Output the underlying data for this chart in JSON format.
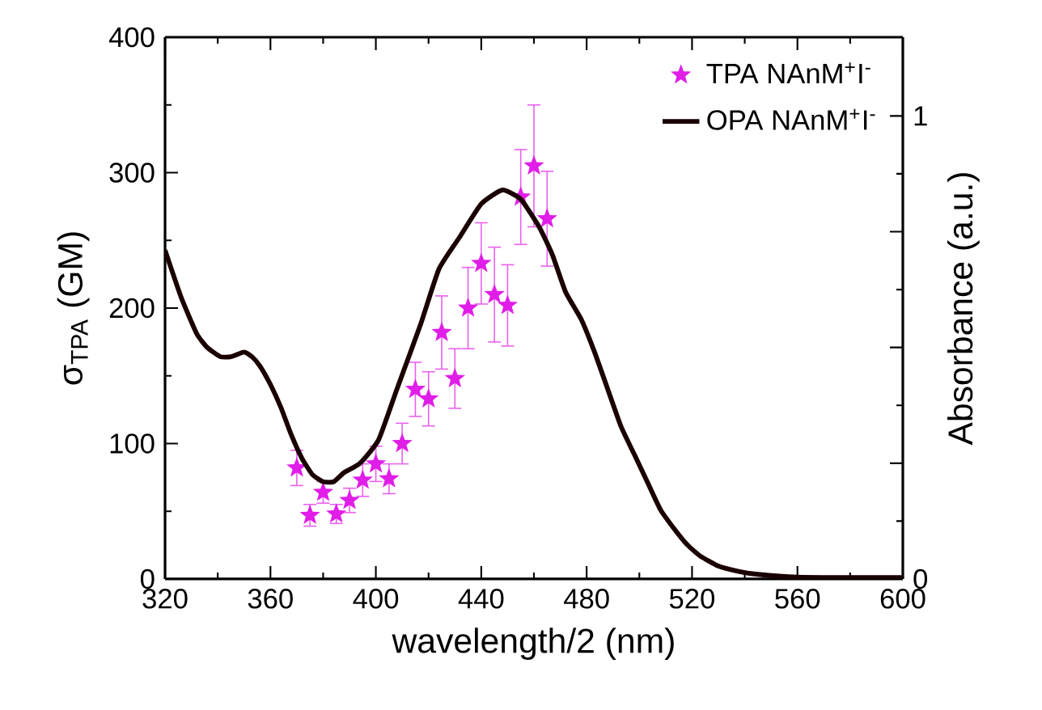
{
  "chart_data": {
    "type": "scatter",
    "xlabel": "wavelength/2  (nm)",
    "ylabel": "σ$_{TPA}$  (GM)",
    "y2label": "Absorbance (a.u.)",
    "xlim": [
      320,
      600
    ],
    "xticks": [
      320,
      360,
      400,
      440,
      480,
      520,
      560,
      600
    ],
    "ylim": [
      0,
      400
    ],
    "yticks": [
      0,
      100,
      200,
      300,
      400
    ],
    "y2lim": [
      0,
      1.17
    ],
    "y2ticks": [
      0,
      {
        "value": 0.25,
        "label": null
      },
      {
        "value": 0.5,
        "label": null
      },
      {
        "value": 0.75,
        "label": null
      },
      1
    ],
    "legend": "top right",
    "grid": false,
    "series": [
      {
        "name": "TPA NAnM$^{+}$I$^{-}$",
        "marker": "star",
        "color": "#e01ee8",
        "x": [
          370,
          375,
          380,
          385,
          390,
          395,
          400,
          405,
          410,
          415,
          420,
          425,
          430,
          435,
          440,
          445,
          450,
          455,
          460,
          465
        ],
        "values": [
          82,
          47,
          64,
          48,
          58,
          73,
          85,
          74,
          100,
          140,
          133,
          182,
          148,
          200,
          233,
          210,
          202,
          282,
          305,
          266
        ],
        "errors": [
          13,
          8,
          8,
          7,
          9,
          12,
          13,
          11,
          15,
          20,
          20,
          27,
          22,
          30,
          30,
          35,
          30,
          35,
          45,
          35
        ]
      },
      {
        "name": "OPA NAnM$^{+}$I$^{-}$",
        "type": "line",
        "axis": "y2",
        "marker": "none",
        "color": "#1a0000",
        "x": [
          320,
          326,
          332,
          336,
          341,
          345,
          350,
          353,
          356,
          360,
          364,
          368,
          372,
          376,
          380,
          384,
          388,
          394,
          401,
          408,
          417,
          424,
          432,
          440,
          448,
          455,
          462,
          467,
          472,
          478,
          483,
          488,
          493,
          498,
          503,
          508,
          513,
          518,
          523,
          530,
          538,
          545,
          560,
          580,
          600
        ],
        "values": [
          0.71,
          0.61,
          0.53,
          0.5,
          0.48,
          0.48,
          0.49,
          0.48,
          0.46,
          0.42,
          0.37,
          0.31,
          0.26,
          0.225,
          0.21,
          0.21,
          0.23,
          0.25,
          0.3,
          0.41,
          0.55,
          0.67,
          0.74,
          0.81,
          0.84,
          0.82,
          0.76,
          0.7,
          0.62,
          0.56,
          0.49,
          0.41,
          0.33,
          0.27,
          0.21,
          0.15,
          0.11,
          0.075,
          0.05,
          0.028,
          0.016,
          0.01,
          0.004,
          0.003,
          0.003
        ]
      }
    ]
  }
}
